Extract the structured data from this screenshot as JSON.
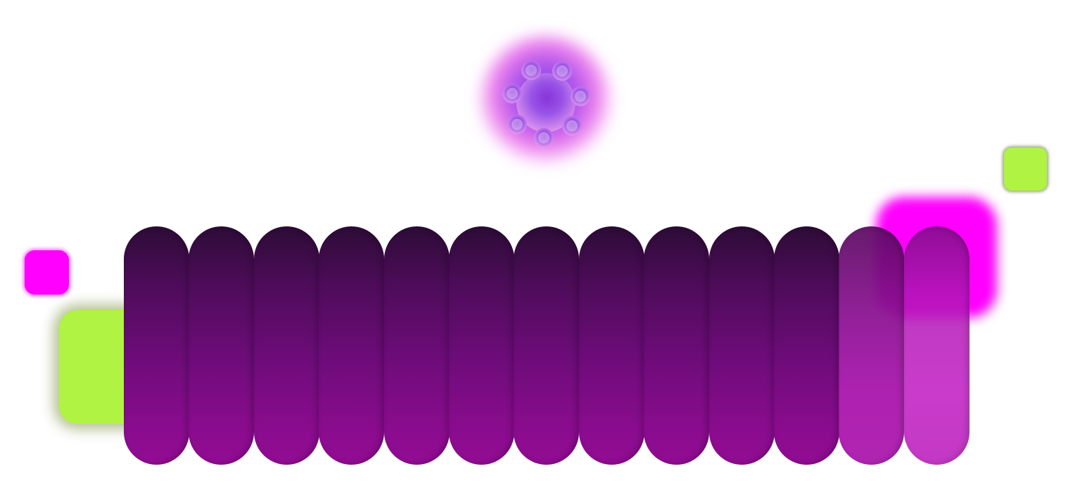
{
  "colors": {
    "magenta": "#ff00ff",
    "lime": "#b1f342",
    "pill_top": "#2d0c37",
    "pill_bottom": "#920c93",
    "flower_core": "#7a3df0"
  },
  "pill_row": {
    "count": 13
  },
  "icons": {
    "flower": "flower-icon"
  }
}
